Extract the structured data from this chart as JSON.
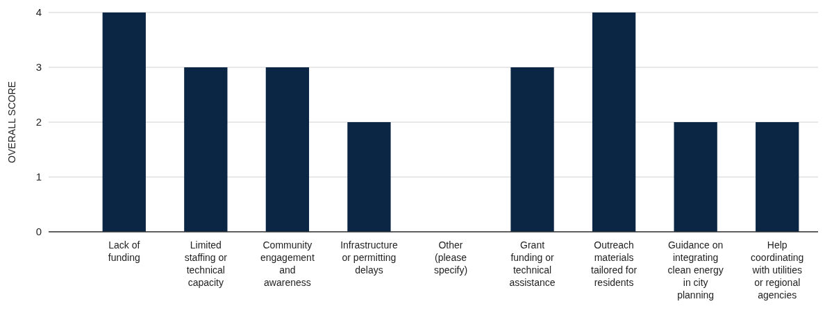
{
  "chart_data": {
    "type": "bar",
    "ylabel": "OVERALL SCORE",
    "categories": [
      "Lack of funding",
      "Limited staffing or technical capacity",
      "Community engagement and awareness",
      "Infrastructure or permitting delays",
      "Other (please specify)",
      "Grant funding or technical assistance",
      "Outreach materials tailored for residents",
      "Guidance on integrating clean energy in city planning",
      "Help coordinating with utilities or regional agencies"
    ],
    "values": [
      4,
      3,
      3,
      2,
      0,
      3,
      4,
      2,
      2
    ],
    "color": "#0b2545",
    "ylim": [
      0,
      4
    ],
    "yticks": [
      0,
      1,
      2,
      3,
      4
    ],
    "grid": "y"
  }
}
